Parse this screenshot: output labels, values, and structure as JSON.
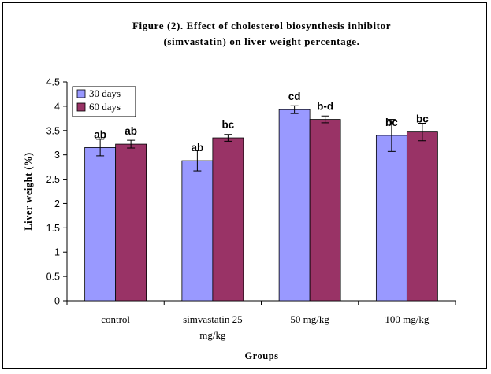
{
  "chart_data": {
    "type": "bar",
    "title_line1": "Figure (2). Effect of cholesterol biosynthesis inhibitor",
    "title_line2": "(simvastatin) on liver weight percentage.",
    "xlabel": "Groups",
    "ylabel": "Liver weight (%)",
    "ylim": [
      0,
      4.5
    ],
    "yticks": [
      "0",
      "0.5",
      "1",
      "1.5",
      "2",
      "2.5",
      "3",
      "3.5",
      "4",
      "4.5"
    ],
    "categories": [
      [
        "control"
      ],
      [
        "simvastatin 25",
        "mg/kg"
      ],
      [
        "50 mg/kg"
      ],
      [
        "100 mg/kg"
      ]
    ],
    "legend_position": "top-left",
    "grid": false,
    "series": [
      {
        "name": "30 days",
        "color": "#9999ff",
        "values": [
          3.15,
          2.88,
          3.93,
          3.4
        ],
        "errors": [
          0.17,
          0.21,
          0.08,
          0.33
        ],
        "labels": [
          "ab",
          "ab",
          "cd",
          "bc"
        ]
      },
      {
        "name": "60 days",
        "color": "#993366",
        "values": [
          3.22,
          3.35,
          3.73,
          3.47
        ],
        "errors": [
          0.08,
          0.07,
          0.07,
          0.18
        ],
        "labels": [
          "ab",
          "bc",
          "b-d",
          "bc"
        ]
      }
    ]
  }
}
